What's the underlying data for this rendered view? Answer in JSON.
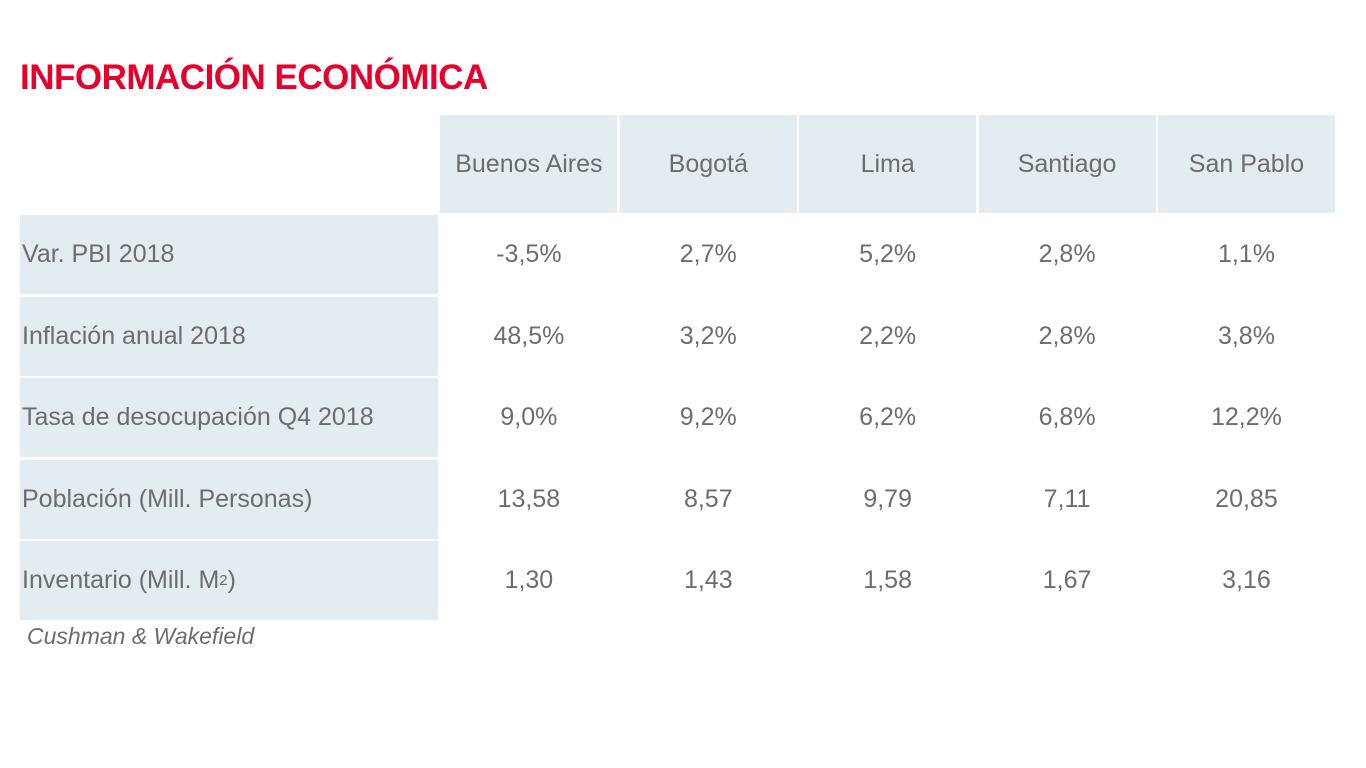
{
  "title": "INFORMACIÓN ECONÓMICA",
  "colors": {
    "title": "#e8002d",
    "cell_background": "#e3ecf1",
    "text": "#6d6d6d"
  },
  "table": {
    "columns": [
      "Buenos Aires",
      "Bogotá",
      "Lima",
      "Santiago",
      "San Pablo"
    ],
    "rows": [
      {
        "label": "Var. PBI 2018",
        "values": [
          "-3,5%",
          "2,7%",
          "5,2%",
          "2,8%",
          "1,1%"
        ]
      },
      {
        "label": "Inflación anual 2018",
        "values": [
          "48,5%",
          "3,2%",
          "2,2%",
          "2,8%",
          "3,8%"
        ]
      },
      {
        "label": "Tasa de desocupación Q4 2018",
        "values": [
          "9,0%",
          "9,2%",
          "6,2%",
          "6,8%",
          "12,2%"
        ]
      },
      {
        "label": "Población (Mill. Personas)",
        "values": [
          "13,58",
          "8,57",
          "9,79",
          "7,11",
          "20,85"
        ]
      },
      {
        "label": "Inventario (Mill. M",
        "label_superscript": "2",
        "label_suffix": ")",
        "values": [
          "1,30",
          "1,43",
          "1,58",
          "1,67",
          "3,16"
        ]
      }
    ]
  },
  "source": "Cushman & Wakefield"
}
